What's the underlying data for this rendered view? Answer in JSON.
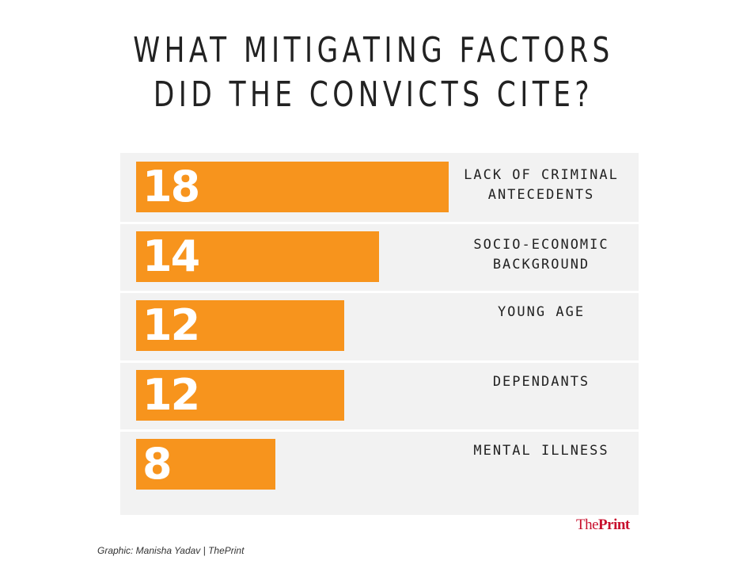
{
  "title": {
    "line1": "WHAT MITIGATING FACTORS",
    "line2": "DID THE CONVICTS CITE?"
  },
  "chart_data": {
    "type": "bar",
    "orientation": "horizontal",
    "categories": [
      [
        "LACK OF CRIMINAL",
        "ANTECEDENTS"
      ],
      [
        "SOCIO-ECONOMIC",
        "BACKGROUND"
      ],
      [
        "YOUNG AGE"
      ],
      [
        "DEPENDANTS"
      ],
      [
        "MENTAL ILLNESS"
      ]
    ],
    "values": [
      18,
      14,
      12,
      12,
      8
    ],
    "xlim": [
      0,
      18
    ],
    "bar_color": "#f7941d",
    "panel_color": "#f2f2f2",
    "grid": false
  },
  "logo": {
    "the": "The",
    "print": "Print"
  },
  "credit": "Graphic: Manisha Yadav | ThePrint"
}
